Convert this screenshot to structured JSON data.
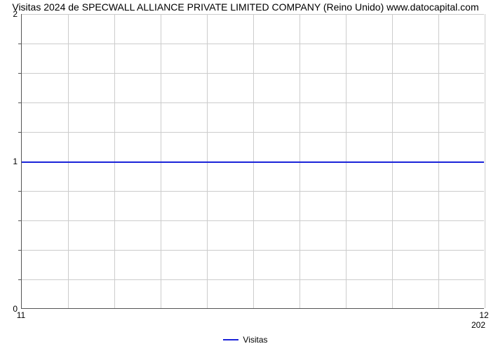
{
  "chart": {
    "type": "line",
    "title": "Visitas 2024 de SPECWALL ALLIANCE PRIVATE LIMITED COMPANY (Reino Unido) www.datocapital.com",
    "title_fontsize": 14,
    "title_color": "#000000",
    "background_color": "#ffffff",
    "plot_border_color": "#555555",
    "grid_color": "#cccccc",
    "tick_label_fontsize": 12,
    "tick_label_color": "#000000",
    "x": {
      "lim": [
        11,
        12
      ],
      "major_ticks": [
        11,
        12
      ],
      "minor_step": 0.1
    },
    "y": {
      "lim": [
        0,
        2
      ],
      "major_ticks": [
        0,
        1,
        2
      ],
      "minor_step": 0.2
    },
    "series": {
      "label": "Visitas",
      "color": "#1a23d9",
      "line_width": 2,
      "x_values": [
        11,
        12
      ],
      "y_values": [
        1,
        1
      ]
    },
    "subcaption": "202",
    "legend_position": "bottom"
  }
}
